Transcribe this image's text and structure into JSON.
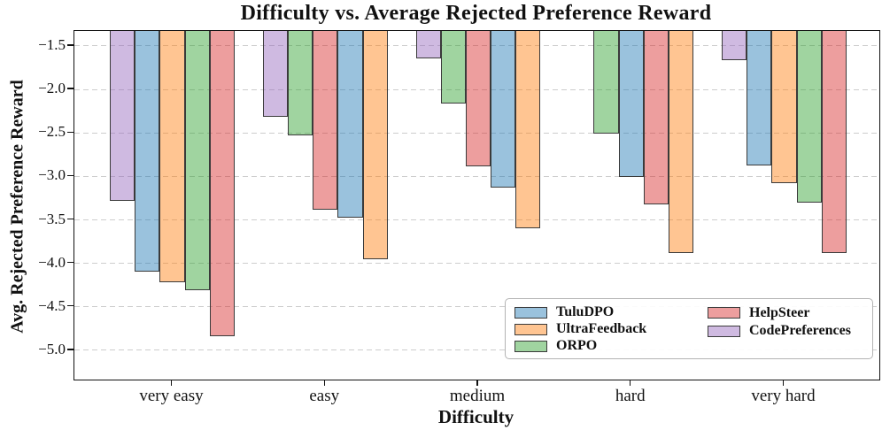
{
  "chart_data": {
    "type": "bar",
    "title": "Difficulty vs. Average Rejected Preference Reward",
    "xlabel": "Difficulty",
    "ylabel": "Avg. Rejected Preference Reward",
    "categories": [
      "very easy",
      "easy",
      "medium",
      "hard",
      "very hard"
    ],
    "series": [
      {
        "name": "TuluDPO",
        "fill": "rgba(31,119,180,0.45)",
        "fill_hex_approx": "#a5c7e3",
        "edge": "#3a3a3a",
        "values": [
          -4.09,
          -3.47,
          -3.13,
          -3.01,
          -2.87
        ]
      },
      {
        "name": "UltraFeedback",
        "fill": "rgba(255,127,14,0.45)",
        "fill_hex_approx": "#fdc893",
        "edge": "#3a3a3a",
        "values": [
          -4.22,
          -3.95,
          -3.6,
          -3.88,
          -3.08
        ]
      },
      {
        "name": "ORPO",
        "fill": "rgba(44,160,44,0.45)",
        "fill_hex_approx": "#a9d6a2",
        "edge": "#3a3a3a",
        "values": [
          -4.31,
          -2.53,
          -2.16,
          -2.51,
          -3.3
        ]
      },
      {
        "name": "HelpSteer",
        "fill": "rgba(214,39,40,0.45)",
        "fill_hex_approx": "#f0a3a6",
        "edge": "#3a3a3a",
        "values": [
          -4.84,
          -3.38,
          -2.88,
          -3.32,
          -3.88
        ]
      },
      {
        "name": "CodePreferences",
        "fill": "rgba(148,103,189,0.45)",
        "fill_hex_approx": "#cfc2e6",
        "edge": "#3a3a3a",
        "values": [
          -3.28,
          -2.31,
          -1.64,
          null,
          -1.66
        ]
      }
    ],
    "yticks": [
      -1.5,
      -2.0,
      -2.5,
      -3.0,
      -3.5,
      -4.0,
      -4.5,
      -5.0
    ],
    "ylim": [
      -5.34,
      -1.33
    ],
    "grid": "horizontal dashed gray",
    "bar_order_note": "Bars within each difficulty group are sorted from least negative to most negative; the CodePreferences bar is not visible in the 'hard' group (value above axis top), its slot is left empty.",
    "legend": {
      "position": "lower right inside plot",
      "columns": 2,
      "rows_per_column": 3
    }
  }
}
